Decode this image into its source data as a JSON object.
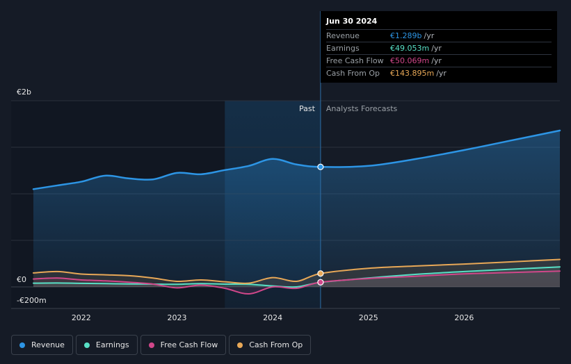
{
  "colors": {
    "revenue": "#2d95e5",
    "earnings": "#58e0c6",
    "free_cash_flow": "#d1478a",
    "cash_from_op": "#e8a857",
    "background": "#151b26"
  },
  "tooltip": {
    "date": "Jun 30 2024",
    "rows": [
      {
        "label": "Revenue",
        "value": "€1.289b",
        "unit": "/yr",
        "color": "#2d95e5"
      },
      {
        "label": "Earnings",
        "value": "€49.053m",
        "unit": "/yr",
        "color": "#58e0c6"
      },
      {
        "label": "Free Cash Flow",
        "value": "€50.069m",
        "unit": "/yr",
        "color": "#d1478a"
      },
      {
        "label": "Cash From Op",
        "value": "€143.895m",
        "unit": "/yr",
        "color": "#e8a857"
      }
    ]
  },
  "legend": [
    {
      "label": "Revenue",
      "color": "#2d95e5"
    },
    {
      "label": "Earnings",
      "color": "#58e0c6"
    },
    {
      "label": "Free Cash Flow",
      "color": "#d1478a"
    },
    {
      "label": "Cash From Op",
      "color": "#e8a857"
    }
  ],
  "chart_data": {
    "type": "line",
    "title": "",
    "xlabel": "",
    "ylabel": "",
    "y_tick_labels": [
      {
        "value": 2000,
        "label": "€2b"
      },
      {
        "value": 0,
        "label": "€0"
      },
      {
        "value": -200,
        "label": "-€200m"
      }
    ],
    "ylim": [
      -200,
      2000
    ],
    "xlim": [
      2021.5,
      2027.0
    ],
    "x_tick_labels": [
      {
        "value": 2022,
        "label": "2022"
      },
      {
        "value": 2023,
        "label": "2023"
      },
      {
        "value": 2024,
        "label": "2024"
      },
      {
        "value": 2025,
        "label": "2025"
      },
      {
        "value": 2026,
        "label": "2026"
      }
    ],
    "past_label": "Past",
    "forecast_label": "Analysts Forecasts",
    "highlight_range": [
      2023.5,
      2024.5
    ],
    "divider_x": 2024.5,
    "series": [
      {
        "name": "Revenue",
        "key": "revenue",
        "past": [
          [
            2021.5,
            1050
          ],
          [
            2021.75,
            1090
          ],
          [
            2022.0,
            1130
          ],
          [
            2022.25,
            1195
          ],
          [
            2022.5,
            1165
          ],
          [
            2022.75,
            1155
          ],
          [
            2023.0,
            1225
          ],
          [
            2023.25,
            1210
          ],
          [
            2023.5,
            1255
          ],
          [
            2023.75,
            1300
          ],
          [
            2024.0,
            1375
          ],
          [
            2024.25,
            1315
          ],
          [
            2024.5,
            1289
          ]
        ],
        "forecast": [
          [
            2024.5,
            1289
          ],
          [
            2025.0,
            1300
          ],
          [
            2025.5,
            1375
          ],
          [
            2026.0,
            1470
          ],
          [
            2026.5,
            1575
          ],
          [
            2027.0,
            1680
          ]
        ]
      },
      {
        "name": "Earnings",
        "key": "earnings",
        "past": [
          [
            2021.5,
            40
          ],
          [
            2021.75,
            42
          ],
          [
            2022.0,
            38
          ],
          [
            2022.25,
            35
          ],
          [
            2022.5,
            32
          ],
          [
            2022.75,
            30
          ],
          [
            2023.0,
            28
          ],
          [
            2023.25,
            35
          ],
          [
            2023.5,
            30
          ],
          [
            2023.75,
            28
          ],
          [
            2024.0,
            10
          ],
          [
            2024.25,
            0
          ],
          [
            2024.5,
            49
          ]
        ],
        "forecast": [
          [
            2024.5,
            49
          ],
          [
            2025.0,
            95
          ],
          [
            2025.5,
            135
          ],
          [
            2026.0,
            165
          ],
          [
            2026.5,
            190
          ],
          [
            2027.0,
            215
          ]
        ]
      },
      {
        "name": "Free Cash Flow",
        "key": "free_cash_flow",
        "past": [
          [
            2021.5,
            85
          ],
          [
            2021.75,
            95
          ],
          [
            2022.0,
            75
          ],
          [
            2022.25,
            65
          ],
          [
            2022.5,
            50
          ],
          [
            2022.75,
            30
          ],
          [
            2023.0,
            -10
          ],
          [
            2023.25,
            20
          ],
          [
            2023.5,
            -15
          ],
          [
            2023.75,
            -75
          ],
          [
            2024.0,
            0
          ],
          [
            2024.25,
            -15
          ],
          [
            2024.5,
            50
          ]
        ],
        "forecast": [
          [
            2024.5,
            50
          ],
          [
            2025.0,
            90
          ],
          [
            2025.5,
            115
          ],
          [
            2026.0,
            140
          ],
          [
            2026.5,
            155
          ],
          [
            2027.0,
            170
          ]
        ]
      },
      {
        "name": "Cash From Op",
        "key": "cash_from_op",
        "past": [
          [
            2021.5,
            150
          ],
          [
            2021.75,
            165
          ],
          [
            2022.0,
            138
          ],
          [
            2022.25,
            130
          ],
          [
            2022.5,
            120
          ],
          [
            2022.75,
            95
          ],
          [
            2023.0,
            60
          ],
          [
            2023.25,
            75
          ],
          [
            2023.5,
            55
          ],
          [
            2023.75,
            40
          ],
          [
            2024.0,
            100
          ],
          [
            2024.25,
            60
          ],
          [
            2024.5,
            144
          ]
        ],
        "forecast": [
          [
            2024.5,
            144
          ],
          [
            2025.0,
            200
          ],
          [
            2025.5,
            225
          ],
          [
            2026.0,
            245
          ],
          [
            2026.5,
            270
          ],
          [
            2027.0,
            295
          ]
        ]
      }
    ]
  }
}
